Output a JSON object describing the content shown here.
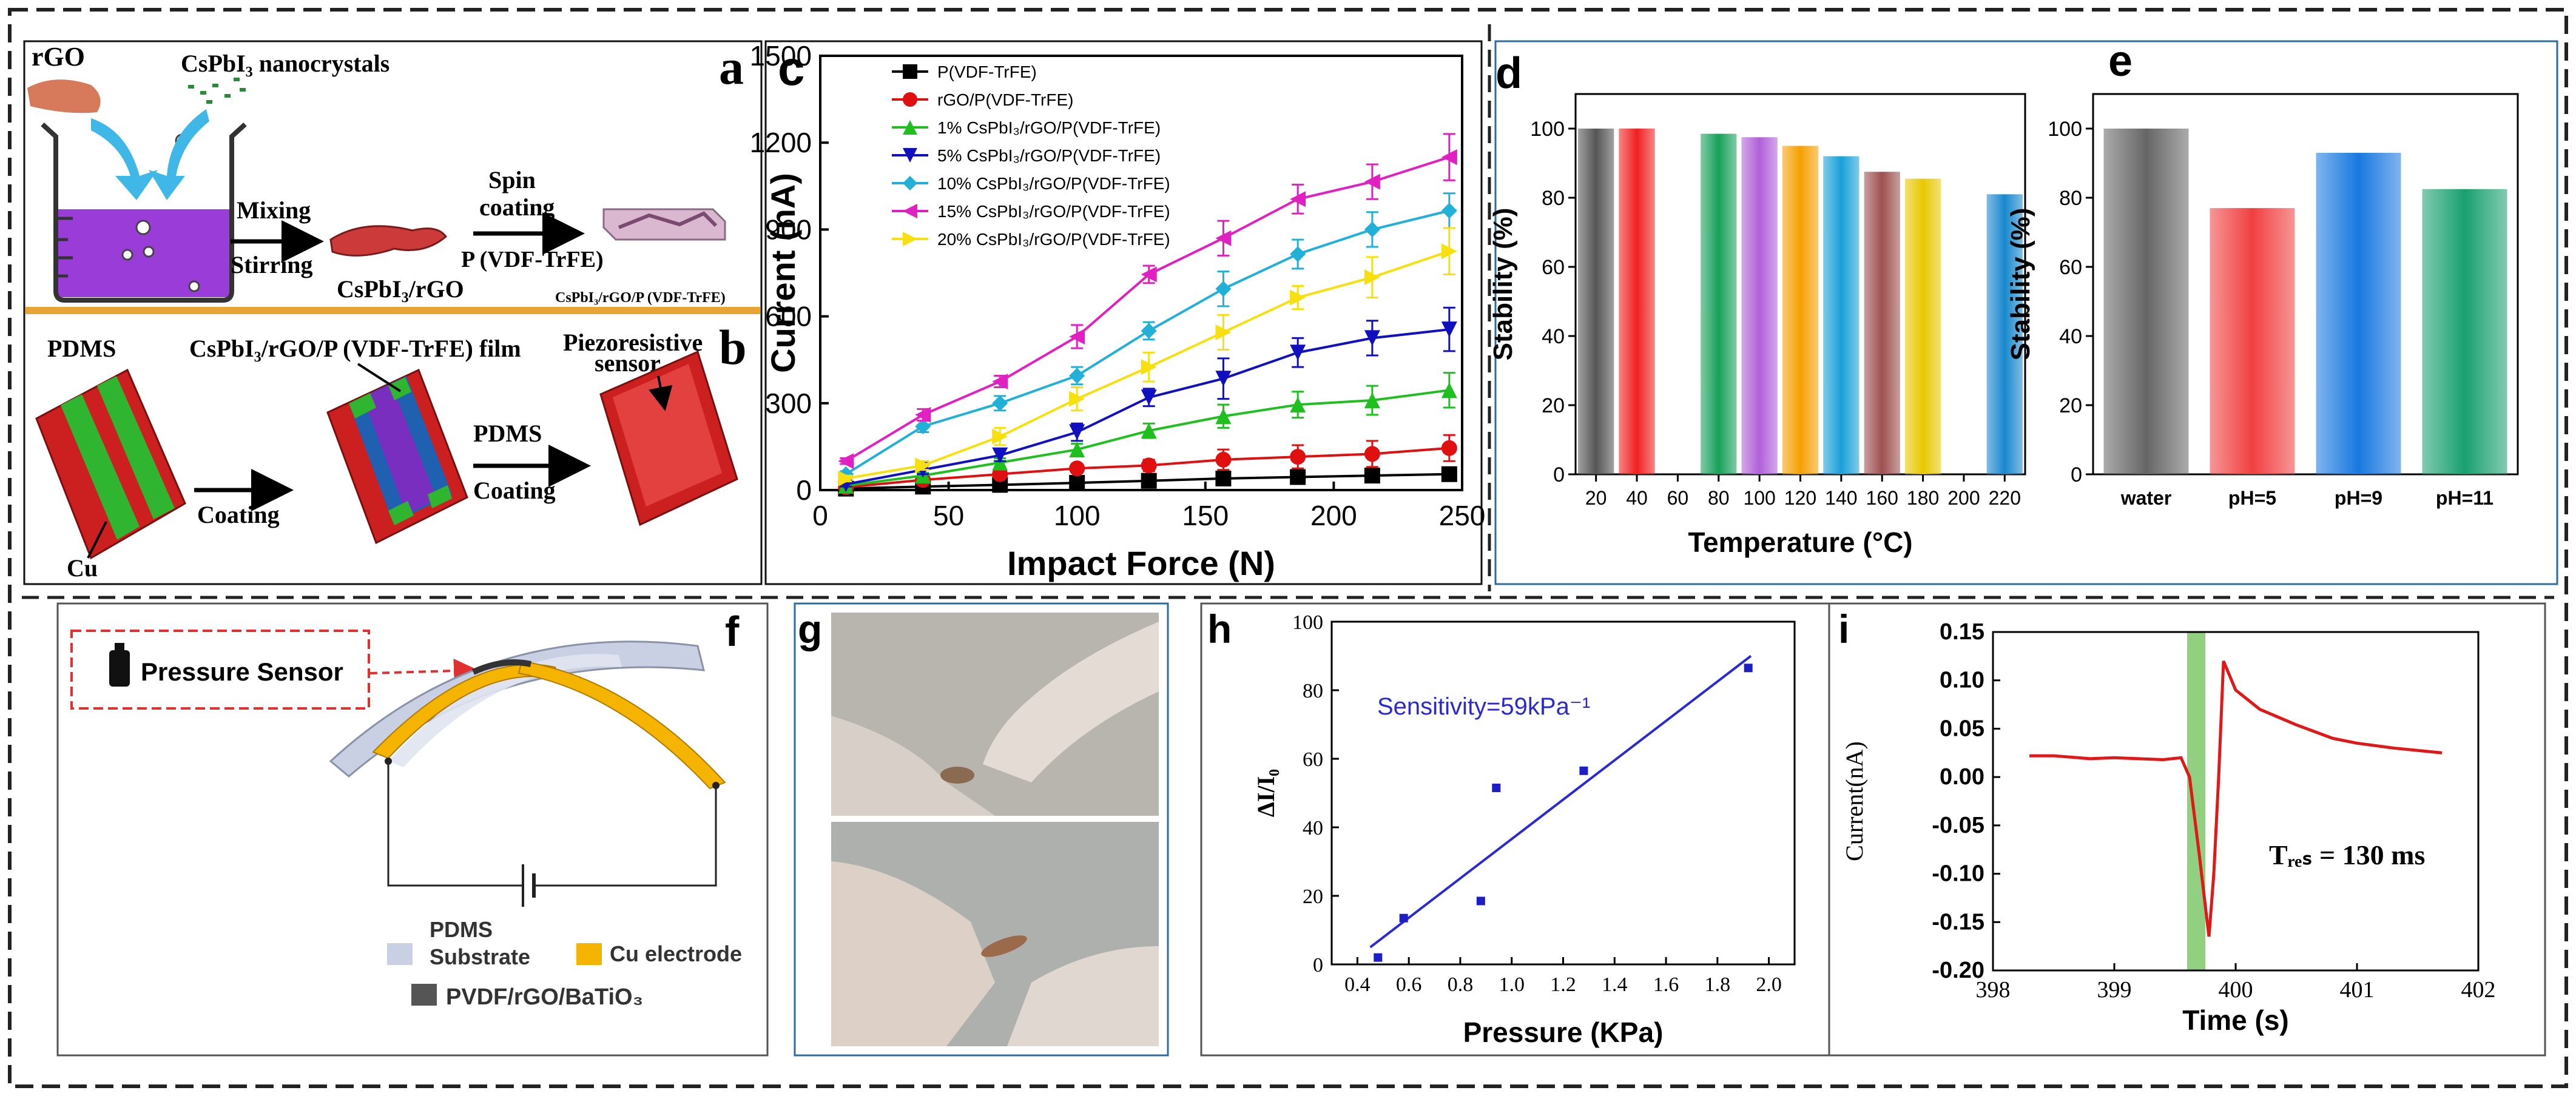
{
  "panel_labels": {
    "a": "a",
    "b": "b",
    "c": "c",
    "d": "d",
    "e": "e",
    "f": "f",
    "g": "g",
    "h": "h",
    "i": "i"
  },
  "panel_a": {
    "rgo": "rGO",
    "nanocrystals": "CsPbI₃ nanocrystals",
    "mixing": "Mixing",
    "stirring": "Stirring",
    "spin1": "Spin",
    "spin2": "coating",
    "pvdf": "P (VDF-TrFE)",
    "cspbi_rgo": "CsPbI₃/rGO",
    "film_label": "CsPbI₃/rGO/P (VDF-TrFE)"
  },
  "panel_b": {
    "pdms": "PDMS",
    "film": "CsPbI₃/rGO/P (VDF-TrFE) film",
    "piezo1": "Piezoresistive",
    "piezo2": "sensor",
    "coating": "Coating",
    "pdms2": "PDMS",
    "coating2": "Coating",
    "cu": "Cu"
  },
  "panel_f": {
    "sensor": "Pressure Sensor",
    "pdms": "PDMS",
    "substrate": "Substrate",
    "cu_electrode": "Cu electrode",
    "composite": "PVDF/rGO/BaTiO₃"
  },
  "colors": {
    "border": "#222222",
    "frame": "#2e6b9e",
    "divider": "#e8a534",
    "purple": "#9a3cd8",
    "red": "#cc1f1f",
    "green": "#2fb52f",
    "blue_arrow": "#3fb8e8",
    "blue_line": "#1e1ec8",
    "curve_red": "#e01818",
    "highlight": "#90d080",
    "cu_yellow": "#f4b400",
    "sensor_red": "#e03030"
  },
  "chart_data": [
    {
      "id": "c",
      "type": "line",
      "title": "",
      "xlabel": "Impact Force (N)",
      "ylabel": "Current (nA)",
      "xlim": [
        0,
        250
      ],
      "ylim": [
        0,
        1500
      ],
      "xticks": [
        0,
        50,
        100,
        150,
        200,
        250
      ],
      "yticks": [
        0,
        300,
        600,
        900,
        1200,
        1500
      ],
      "x": [
        10,
        40,
        70,
        100,
        128,
        157,
        186,
        215,
        245
      ],
      "series": [
        {
          "name": "P(VDF-TrFE)",
          "color": "#000000",
          "marker": "square",
          "values": [
            5,
            12,
            18,
            25,
            32,
            40,
            45,
            50,
            55
          ],
          "errors": [
            3,
            4,
            5,
            6,
            7,
            8,
            9,
            10,
            10
          ]
        },
        {
          "name": "rGO/P(VDF-TrFE)",
          "color": "#e01010",
          "marker": "circle",
          "values": [
            10,
            35,
            55,
            75,
            85,
            105,
            115,
            125,
            145
          ],
          "errors": [
            5,
            8,
            10,
            15,
            20,
            35,
            40,
            45,
            45
          ]
        },
        {
          "name": "1% CsPbI₃/rGO/P(VDF-TrFE)",
          "color": "#1fbf1f",
          "marker": "triangle-up",
          "values": [
            15,
            50,
            95,
            140,
            205,
            255,
            295,
            310,
            345
          ],
          "errors": [
            8,
            10,
            15,
            20,
            25,
            40,
            45,
            50,
            60
          ]
        },
        {
          "name": "5% CsPbI₃/rGO/P(VDF-TrFE)",
          "color": "#1010c0",
          "marker": "triangle-down",
          "values": [
            20,
            70,
            120,
            200,
            320,
            385,
            475,
            525,
            555
          ],
          "errors": [
            8,
            15,
            20,
            30,
            30,
            70,
            50,
            60,
            75
          ]
        },
        {
          "name": "10% CsPbI₃/rGO/P(VDF-TrFE)",
          "color": "#20b0d8",
          "marker": "diamond",
          "values": [
            55,
            220,
            300,
            395,
            550,
            695,
            815,
            900,
            965
          ],
          "errors": [
            10,
            20,
            25,
            30,
            30,
            60,
            50,
            60,
            60
          ]
        },
        {
          "name": "15% CsPbI₃/rGO/P(VDF-TrFE)",
          "color": "#e020c0",
          "marker": "triangle-left",
          "values": [
            100,
            260,
            375,
            530,
            745,
            870,
            1005,
            1065,
            1150
          ],
          "errors": [
            10,
            20,
            20,
            40,
            30,
            60,
            50,
            60,
            80
          ]
        },
        {
          "name": "20% CsPbI₃/rGO/P(VDF-TrFE)",
          "color": "#f8e010",
          "marker": "triangle-right",
          "values": [
            40,
            85,
            185,
            315,
            425,
            545,
            665,
            735,
            825
          ],
          "errors": [
            10,
            15,
            30,
            40,
            50,
            60,
            40,
            70,
            80
          ]
        }
      ]
    },
    {
      "id": "d",
      "type": "bar",
      "xlabel": "Temperature (°C)",
      "ylabel": "Stability (%)",
      "xlim": [
        10,
        230
      ],
      "ylim": [
        0,
        110
      ],
      "xticks": [
        20,
        40,
        60,
        80,
        100,
        120,
        140,
        160,
        180,
        200,
        220
      ],
      "yticks": [
        0,
        20,
        40,
        60,
        80,
        100
      ],
      "x": [
        20,
        40,
        80,
        100,
        120,
        140,
        160,
        180,
        220
      ],
      "values": [
        100,
        100,
        98.5,
        97.5,
        95,
        92,
        87.5,
        85.5,
        81
      ],
      "colors": [
        "#555555",
        "#f02020",
        "#17a05a",
        "#b060d8",
        "#f5a000",
        "#18a0d8",
        "#9e5050",
        "#e8c800",
        "#1888cc"
      ]
    },
    {
      "id": "e",
      "type": "bar",
      "xlabel": "",
      "ylabel": "Stability (%)",
      "ylim": [
        0,
        110
      ],
      "yticks": [
        0,
        20,
        40,
        60,
        80,
        100
      ],
      "categories": [
        "water",
        "pH=5",
        "pH=9",
        "pH=11"
      ],
      "values": [
        100,
        77,
        93,
        82.5
      ],
      "colors": [
        "#666666",
        "#f04040",
        "#1878e0",
        "#1aa070"
      ]
    },
    {
      "id": "h",
      "type": "scatter",
      "xlabel": "Pressure (KPa)",
      "ylabel": "ΔI/I₀",
      "annotation": "Sensitivity=59kPa⁻¹",
      "xlim": [
        0.3,
        2.1
      ],
      "ylim": [
        0,
        100
      ],
      "xticks": [
        0.4,
        0.6,
        0.8,
        1.0,
        1.2,
        1.4,
        1.6,
        1.8,
        2.0
      ],
      "xticklabels": [
        "0.4",
        "0.6",
        "0.8",
        "1.0",
        "1.2",
        "1.4",
        "1.6",
        "1.8",
        "2.0"
      ],
      "yticks": [
        0,
        20,
        40,
        60,
        80,
        100
      ],
      "x": [
        0.48,
        0.58,
        0.88,
        0.94,
        1.28,
        1.92
      ],
      "y": [
        2,
        13.5,
        18.5,
        51.5,
        56.5,
        86.5
      ],
      "fit": {
        "x": [
          0.45,
          1.93
        ],
        "y": [
          5,
          90
        ]
      }
    },
    {
      "id": "i",
      "type": "line",
      "xlabel": "Time (s)",
      "ylabel": "Current(nA)",
      "annotation": "Tᵣₑₛ = 130 ms",
      "xlim": [
        398,
        402
      ],
      "ylim": [
        -0.2,
        0.15
      ],
      "xticks": [
        398,
        399,
        400,
        401,
        402
      ],
      "yticks": [
        -0.2,
        -0.15,
        -0.1,
        -0.05,
        0.0,
        0.05,
        0.1,
        0.15
      ],
      "yticklabels": [
        "-0.20",
        "-0.15",
        "-0.10",
        "-0.05",
        "0.00",
        "0.05",
        "0.10",
        "0.15"
      ],
      "highlight": [
        399.6,
        399.75
      ],
      "x": [
        398.3,
        398.5,
        398.8,
        399.0,
        399.2,
        399.4,
        399.55,
        399.62,
        399.7,
        399.78,
        399.82,
        399.86,
        399.9,
        399.95,
        400.0,
        400.2,
        400.5,
        400.8,
        401.0,
        401.3,
        401.7
      ],
      "y": [
        0.022,
        0.022,
        0.019,
        0.02,
        0.019,
        0.018,
        0.02,
        0.0,
        -0.08,
        -0.165,
        -0.1,
        0.0,
        0.12,
        0.105,
        0.09,
        0.07,
        0.054,
        0.04,
        0.035,
        0.03,
        0.025
      ]
    }
  ]
}
